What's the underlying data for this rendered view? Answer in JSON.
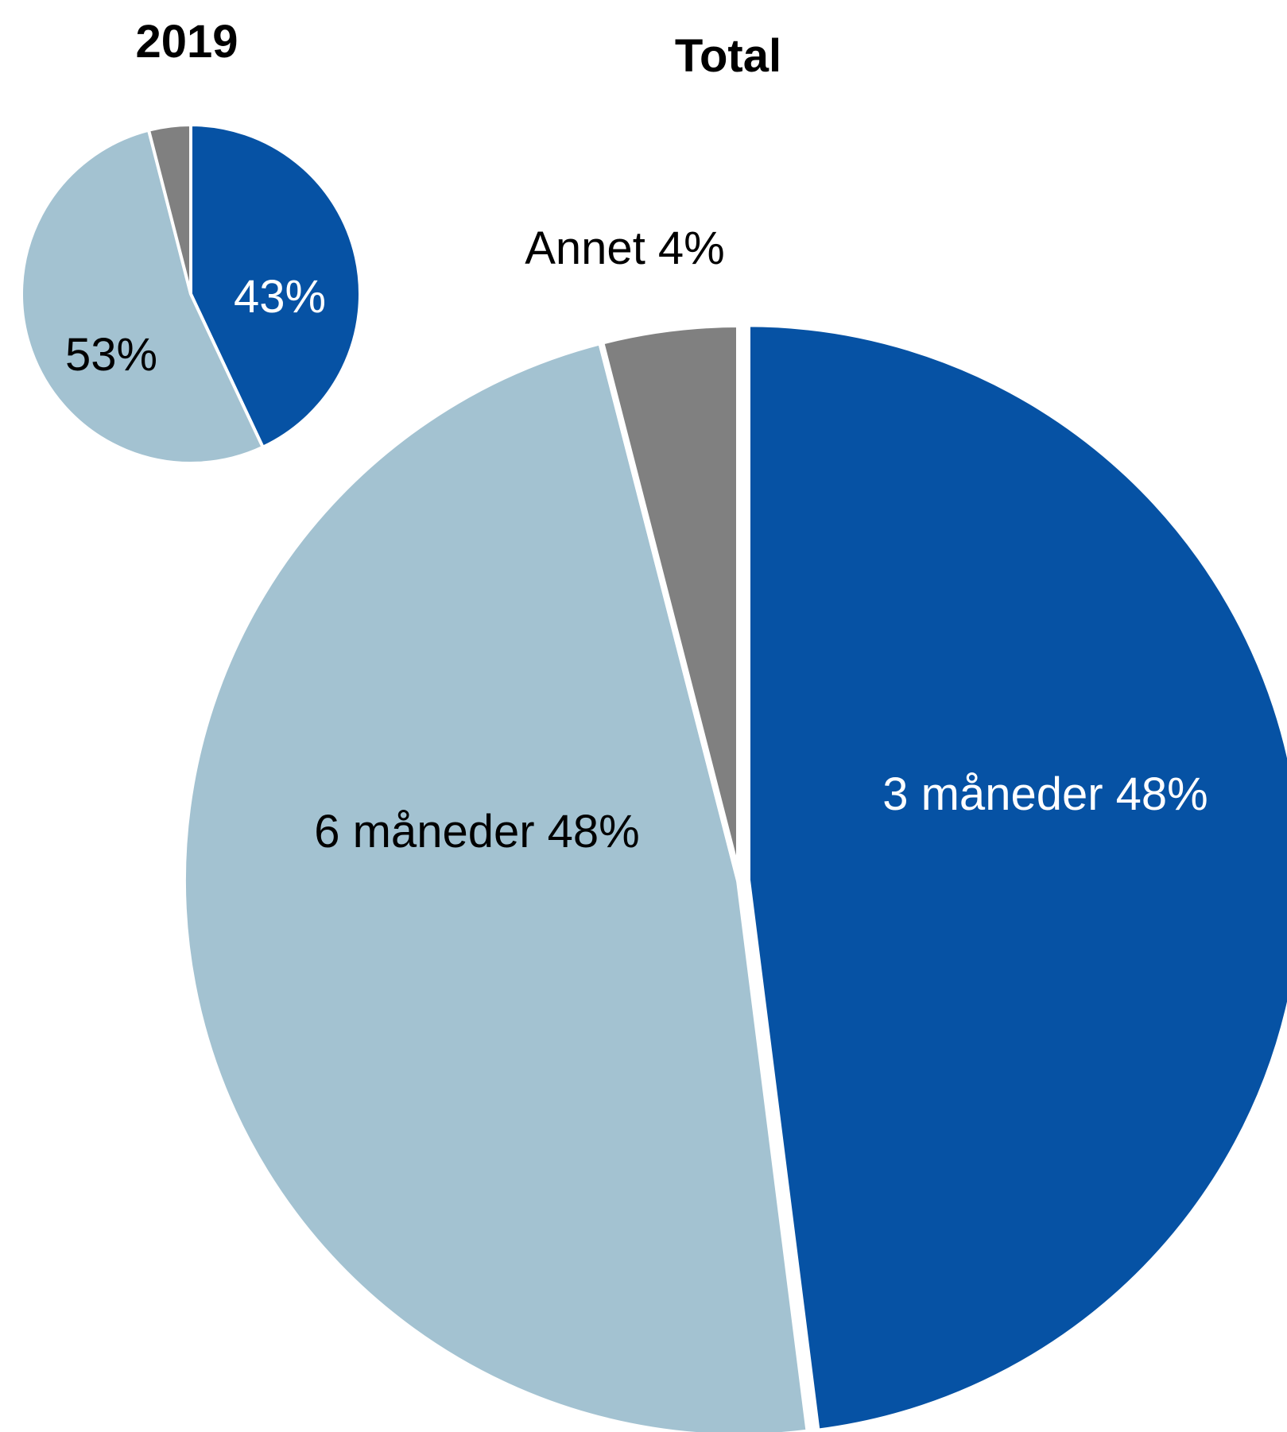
{
  "chart_data": [
    {
      "type": "pie",
      "title": "2019",
      "categories": [
        "3 måneder",
        "6 måneder",
        "Annet"
      ],
      "values": [
        43,
        53,
        4
      ],
      "colors": [
        "#0652a4",
        "#a3c2d1",
        "#808080"
      ],
      "labels": [
        "43%",
        "53%",
        ""
      ],
      "label_colors": [
        "#ffffff",
        "#000000",
        "#000000"
      ]
    },
    {
      "type": "pie",
      "title": "Total",
      "categories": [
        "3 måneder",
        "6 måneder",
        "Annet"
      ],
      "values": [
        48,
        48,
        4
      ],
      "colors": [
        "#0652a4",
        "#a3c2d1",
        "#808080"
      ],
      "labels": [
        "3 måneder 48%",
        "6 måneder 48%",
        "Annet  4%"
      ],
      "label_colors": [
        "#ffffff",
        "#000000",
        "#000000"
      ]
    }
  ]
}
